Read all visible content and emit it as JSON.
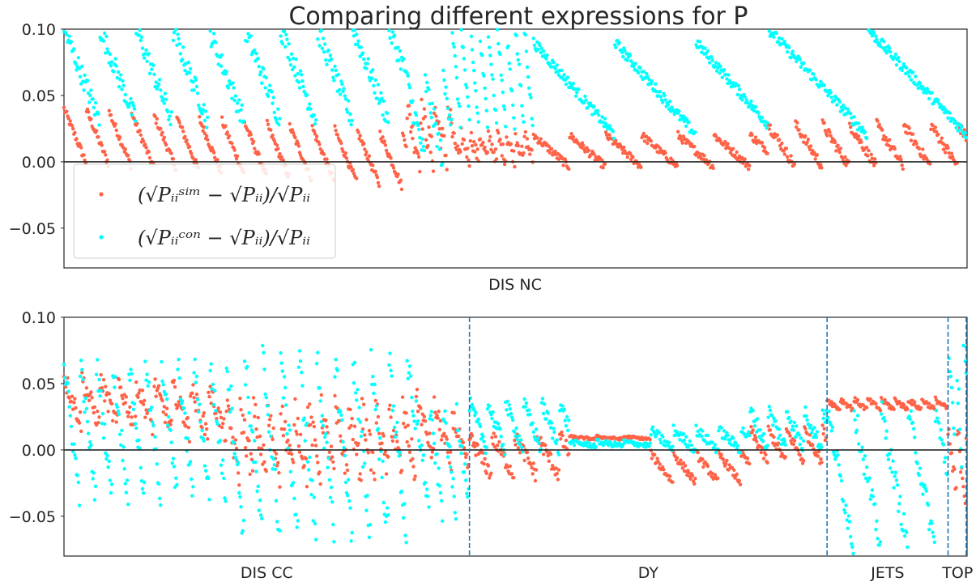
{
  "colors": {
    "sim": "#ff6347",
    "con": "#00ffff",
    "zero_line": "#262626",
    "divider": "#1f77b4"
  },
  "chart_data": [
    {
      "type": "scatter",
      "title": "Comparing different expressions for P",
      "xlabel": "DIS NC",
      "ylim": [
        -0.08,
        0.1
      ],
      "yticks": [
        -0.05,
        0.0,
        0.05,
        0.1
      ],
      "ytick_labels": [
        "−0.05",
        "0.00",
        "0.05",
        "0.10"
      ],
      "grid": false,
      "legend_position": "lower-left",
      "n_points": 1000,
      "series": [
        {
          "name": "(√Pᵢᵢˢⁱᵐ − √Pᵢᵢ)/√Pᵢᵢ",
          "color_key": "sim",
          "segments": [
            {
              "start": 0,
              "end": 380,
              "base": 0.0,
              "hi": 0.04,
              "trend": -0.02,
              "period": 25,
              "noise": 0.003
            },
            {
              "start": 380,
              "end": 430,
              "base": 0.0,
              "hi": 0.04,
              "trend": 0.0,
              "period": 15,
              "noise": 0.012
            },
            {
              "start": 430,
              "end": 520,
              "base": 0.0,
              "hi": 0.02,
              "trend": 0.0,
              "period": 10,
              "noise": 0.006
            },
            {
              "start": 520,
              "end": 780,
              "base": -0.004,
              "hi": 0.02,
              "trend": 0.0,
              "period": 40,
              "noise": 0.003
            },
            {
              "start": 780,
              "end": 1000,
              "base": -0.004,
              "hi": 0.028,
              "trend": 0.0,
              "period": 30,
              "noise": 0.004
            }
          ]
        },
        {
          "name": "(√Pᵢᵢᶜᵒⁿ − √Pᵢᵢ)/√Pᵢᵢ",
          "color_key": "con",
          "segments": [
            {
              "start": 0,
              "end": 380,
              "base": 0.03,
              "hi": 0.1,
              "trend": 0.0,
              "period": 40,
              "noise": 0.008
            },
            {
              "start": 380,
              "end": 430,
              "base": 0.0,
              "hi": 0.06,
              "trend": 0.0,
              "period": 20,
              "noise": 0.01
            },
            {
              "start": 430,
              "end": 520,
              "base": 0.02,
              "hi": 0.1,
              "trend": 0.0,
              "period": 10,
              "noise": 0.006
            },
            {
              "start": 520,
              "end": 780,
              "base": 0.02,
              "hi": 0.09,
              "trend": 0.0,
              "period": 90,
              "noise": 0.004
            },
            {
              "start": 780,
              "end": 1000,
              "base": 0.02,
              "hi": 0.1,
              "trend": 0.0,
              "period": 110,
              "noise": 0.004
            }
          ]
        }
      ]
    },
    {
      "type": "scatter",
      "ylim": [
        -0.08,
        0.1
      ],
      "yticks": [
        -0.05,
        0.0,
        0.05,
        0.1
      ],
      "ytick_labels": [
        "−0.05",
        "0.00",
        "0.05",
        "0.10"
      ],
      "grid": false,
      "n_points": 1000,
      "dataset_boundaries": [
        449,
        845,
        979,
        1000
      ],
      "datasets": [
        {
          "label": "DIS CC",
          "start": 0,
          "end": 449
        },
        {
          "label": "DY",
          "start": 449,
          "end": 845
        },
        {
          "label": "JETS",
          "start": 845,
          "end": 979
        },
        {
          "label": "TOP",
          "start": 979,
          "end": 1000
        }
      ],
      "series": [
        {
          "name": "(√Pᵢᵢˢⁱᵐ − √Pᵢᵢ)/√Pᵢᵢ",
          "color_key": "sim",
          "segments": [
            {
              "start": 0,
              "end": 180,
              "base": 0.02,
              "hi": 0.055,
              "trend": -0.01,
              "period": 20,
              "noise": 0.008
            },
            {
              "start": 180,
              "end": 390,
              "base": -0.02,
              "hi": 0.03,
              "trend": 0.0,
              "period": 15,
              "noise": 0.012
            },
            {
              "start": 390,
              "end": 449,
              "base": 0.0,
              "hi": 0.04,
              "trend": -0.02,
              "period": 20,
              "noise": 0.008
            },
            {
              "start": 449,
              "end": 560,
              "base": -0.02,
              "hi": 0.01,
              "trend": 0.0,
              "period": 25,
              "noise": 0.006
            },
            {
              "start": 560,
              "end": 650,
              "base": 0.008,
              "hi": 0.01,
              "trend": 0.0,
              "period": 30,
              "noise": 0.001
            },
            {
              "start": 650,
              "end": 760,
              "base": -0.025,
              "hi": -0.003,
              "trend": 0.0,
              "period": 25,
              "noise": 0.003
            },
            {
              "start": 760,
              "end": 845,
              "base": -0.01,
              "hi": 0.015,
              "trend": 0.0,
              "period": 20,
              "noise": 0.004
            },
            {
              "start": 845,
              "end": 979,
              "base": 0.03,
              "hi": 0.038,
              "trend": 0.0,
              "period": 15,
              "noise": 0.002
            },
            {
              "start": 979,
              "end": 1000,
              "base": -0.04,
              "hi": 0.015,
              "trend": 0.0,
              "period": 10,
              "noise": 0.01
            }
          ]
        },
        {
          "name": "(√Pᵢᵢᶜᵒⁿ − √Pᵢᵢ)/√Pᵢᵢ",
          "color_key": "con",
          "segments": [
            {
              "start": 0,
              "end": 180,
              "base": -0.04,
              "hi": 0.065,
              "trend": 0.0,
              "period": 18,
              "noise": 0.01
            },
            {
              "start": 180,
              "end": 390,
              "base": -0.07,
              "hi": 0.07,
              "trend": 0.0,
              "period": 20,
              "noise": 0.015
            },
            {
              "start": 390,
              "end": 449,
              "base": -0.05,
              "hi": 0.03,
              "trend": 0.0,
              "period": 15,
              "noise": 0.01
            },
            {
              "start": 449,
              "end": 560,
              "base": 0.0,
              "hi": 0.035,
              "trend": 0.0,
              "period": 20,
              "noise": 0.006
            },
            {
              "start": 560,
              "end": 650,
              "base": 0.003,
              "hi": 0.006,
              "trend": 0.0,
              "period": 30,
              "noise": 0.002
            },
            {
              "start": 650,
              "end": 760,
              "base": 0.0,
              "hi": 0.015,
              "trend": 0.0,
              "period": 25,
              "noise": 0.004
            },
            {
              "start": 760,
              "end": 845,
              "base": 0.0,
              "hi": 0.03,
              "trend": 0.0,
              "period": 20,
              "noise": 0.006
            },
            {
              "start": 845,
              "end": 979,
              "base": -0.075,
              "hi": 0.03,
              "trend": 0.0,
              "period": 30,
              "noise": 0.01
            },
            {
              "start": 979,
              "end": 1000,
              "base": -0.02,
              "hi": 0.1,
              "trend": 0.0,
              "period": 8,
              "noise": 0.02
            }
          ]
        }
      ]
    }
  ]
}
